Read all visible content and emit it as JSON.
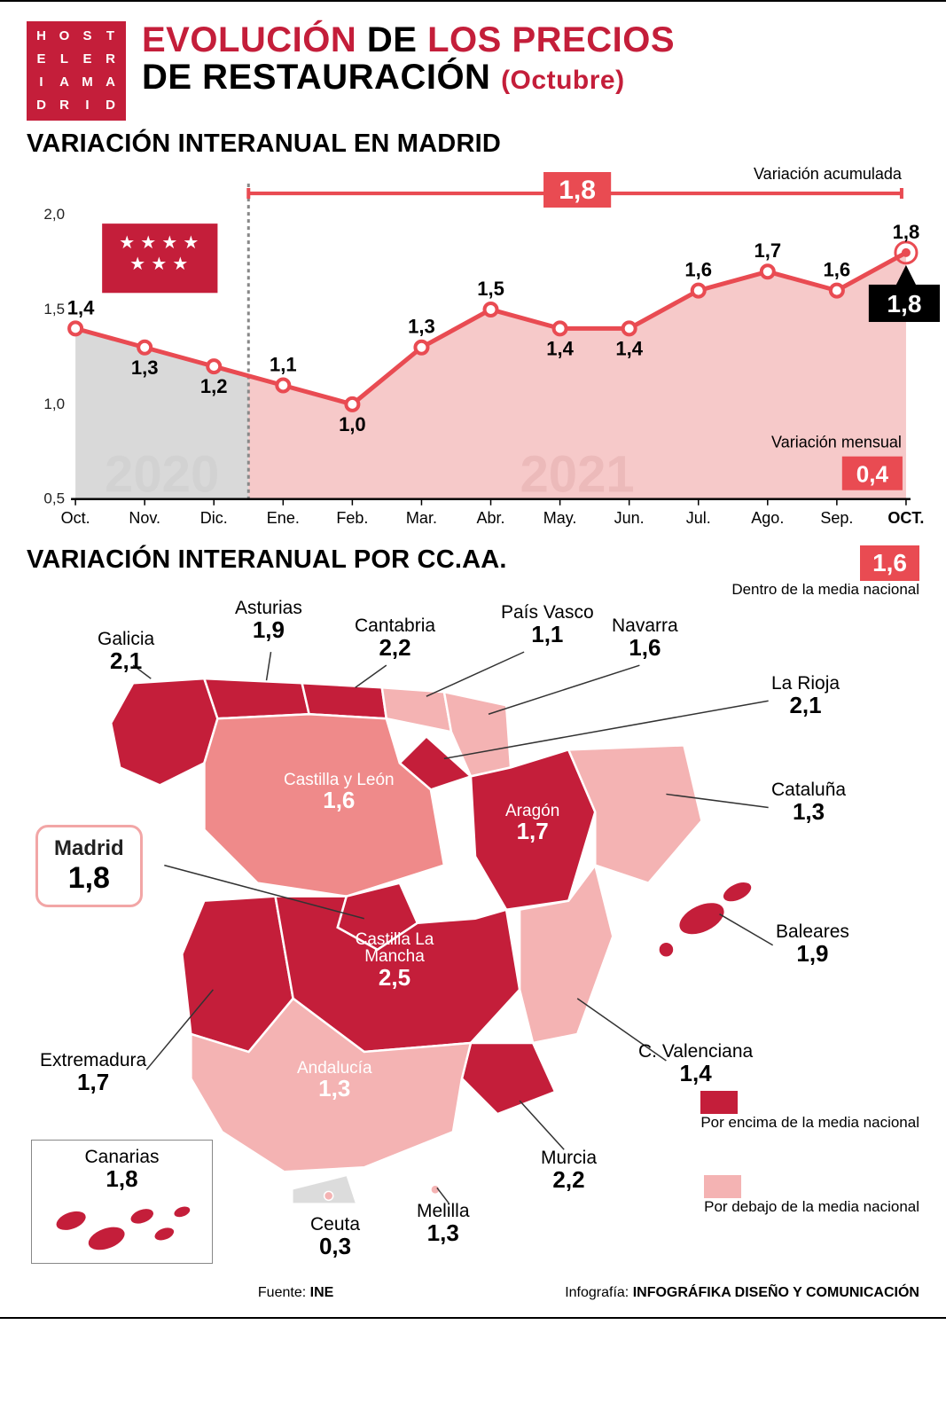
{
  "colors": {
    "primary_red": "#c41e3a",
    "bright_red": "#e94b52",
    "dark_red": "#c41e3a",
    "light_red": "#f4b3b3",
    "mid_red": "#ef8a8a",
    "gray_bg": "#e8e8e8",
    "gray_text": "#dedede",
    "black": "#000000",
    "axis": "#222222"
  },
  "logo_text": "HOSTELERIAMADRID",
  "title": {
    "part1": "EVOLUCIÓN",
    "part2": "DE",
    "part3": "LOS PRECIOS",
    "line2a": "DE RESTAURACIÓN",
    "line2b": "(Octubre)"
  },
  "chart": {
    "heading": "VARIACIÓN INTERANUAL EN MADRID",
    "ylim": [
      0.5,
      2.0
    ],
    "yticks": [
      "0,5",
      "1,0",
      "1,5",
      "2,0"
    ],
    "months": [
      "Oct.",
      "Nov.",
      "Dic.",
      "Ene.",
      "Feb.",
      "Mar.",
      "Abr.",
      "May.",
      "Jun.",
      "Jul.",
      "Ago.",
      "Sep.",
      "OCT."
    ],
    "values": [
      1.4,
      1.3,
      1.2,
      1.1,
      1.0,
      1.3,
      1.5,
      1.4,
      1.4,
      1.6,
      1.7,
      1.6,
      1.8
    ],
    "value_labels": [
      "1,4",
      "1,3",
      "1,2",
      "1,1",
      "1,0",
      "1,3",
      "1,5",
      "1,4",
      "1,4",
      "1,6",
      "1,7",
      "1,6",
      "1,8"
    ],
    "year_split_after_index": 2,
    "year_left": "2020",
    "year_right": "2021",
    "accum_label": "Variación acumulada",
    "accum_value": "1,8",
    "monthly_label": "Variación mensual",
    "monthly_value": "0,4",
    "final_callout": "1,8",
    "line_color": "#e94b52",
    "fill_2020": "#d9d9d9",
    "fill_2021": "#f6c9c9",
    "marker_fill": "#ffffff",
    "marker_stroke": "#e94b52"
  },
  "map": {
    "heading": "VARIACIÓN INTERANUAL POR CC.AA.",
    "national_value": "1,6",
    "national_label": "Dentro de la media nacional",
    "legend_above": "Por encima de la media nacional",
    "legend_below": "Por debajo de la media nacional",
    "regions": {
      "galicia": {
        "name": "Galicia",
        "value": "2,1",
        "above": true
      },
      "asturias": {
        "name": "Asturias",
        "value": "1,9",
        "above": true
      },
      "cantabria": {
        "name": "Cantabria",
        "value": "2,2",
        "above": true
      },
      "pais_vasco": {
        "name": "País Vasco",
        "value": "1,1",
        "above": false
      },
      "navarra": {
        "name": "Navarra",
        "value": "1,6",
        "above": false
      },
      "la_rioja": {
        "name": "La Rioja",
        "value": "2,1",
        "above": true
      },
      "aragon": {
        "name": "Aragón",
        "value": "1,7",
        "above": true
      },
      "cataluna": {
        "name": "Cataluña",
        "value": "1,3",
        "above": false
      },
      "castilla_leon": {
        "name": "Castilla y León",
        "value": "1,6",
        "above": false,
        "mid": true
      },
      "madrid": {
        "name": "Madrid",
        "value": "1,8",
        "above": true
      },
      "castilla_mancha": {
        "name": "Castilla La Mancha",
        "value": "2,5",
        "above": true
      },
      "extremadura": {
        "name": "Extremadura",
        "value": "1,7",
        "above": true
      },
      "c_valenciana": {
        "name": "C. Valenciana",
        "value": "1,4",
        "above": false
      },
      "baleares": {
        "name": "Baleares",
        "value": "1,9",
        "above": true
      },
      "andalucia": {
        "name": "Andalucía",
        "value": "1,3",
        "above": false
      },
      "murcia": {
        "name": "Murcia",
        "value": "2,2",
        "above": true
      },
      "canarias": {
        "name": "Canarias",
        "value": "1,8",
        "above": true
      },
      "ceuta": {
        "name": "Ceuta",
        "value": "0,3",
        "above": false
      },
      "melilla": {
        "name": "Melilla",
        "value": "1,3",
        "above": false
      }
    }
  },
  "footer": {
    "source_label": "Fuente:",
    "source": "INE",
    "credit_label": "Infografía:",
    "credit": "INFOGRÁFIKA DISEÑO Y COMUNICACIÓN"
  }
}
